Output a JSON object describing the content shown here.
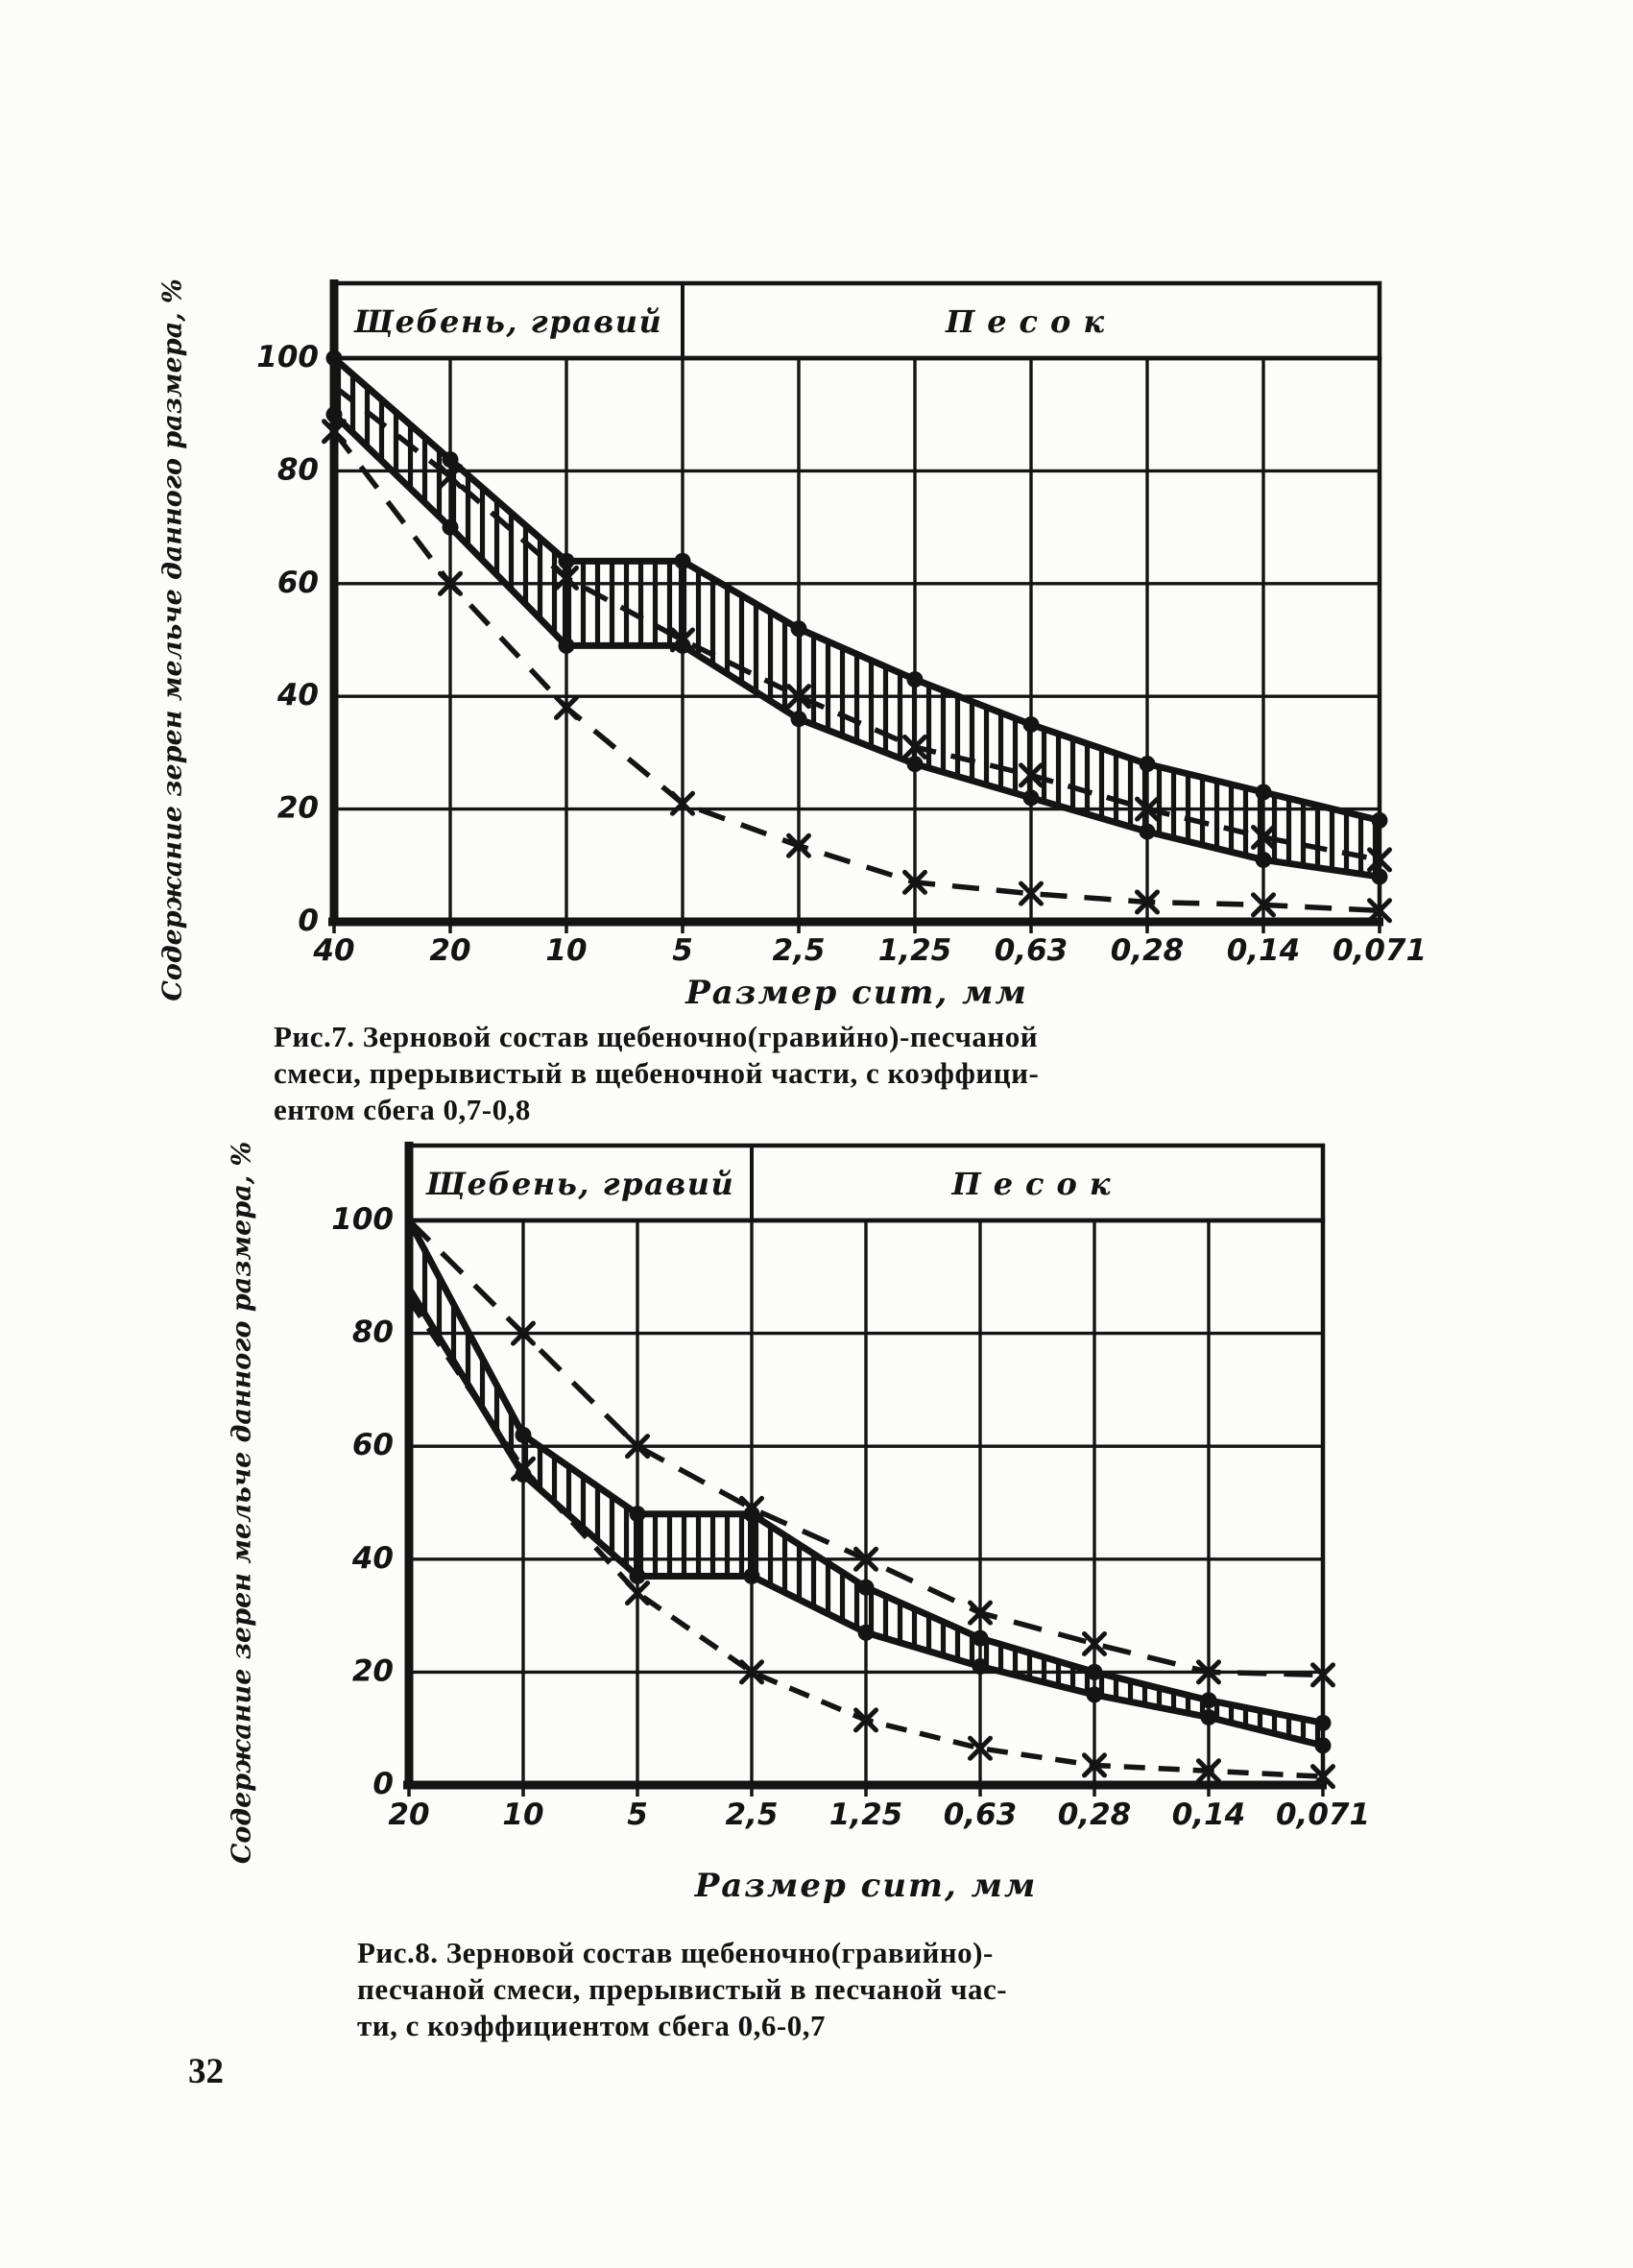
{
  "page": {
    "number": "32",
    "ink_color": "#141414",
    "paper_color": "#fcfcfa"
  },
  "figures": [
    {
      "caption_lines": [
        "Рис.7. Зерновой состав щебеночно(гравийно)-песчаной",
        "смеси, прерывистый в щебеночной части, с коэффици-",
        "ентом сбега 0,7-0,8"
      ]
    },
    {
      "caption_lines": [
        "Рис.8. Зерновой состав щебеночно(гравийно)-",
        "песчаной смеси, прерывистый в песчаной час-",
        "ти, с коэффициентом сбега 0,6-0,7"
      ]
    }
  ],
  "chart_data": [
    {
      "type": "line",
      "title": "Рис.7",
      "xlabel": "Размер сит, мм",
      "ylabel": "Содержание зерен мельче данного размера, %",
      "categories": [
        "40",
        "20",
        "10",
        "5",
        "2,5",
        "1,25",
        "0,63",
        "0,28",
        "0,14",
        "0,071"
      ],
      "y_ticks": [
        0,
        20,
        40,
        60,
        80,
        100
      ],
      "ylim": [
        0,
        100
      ],
      "grid": true,
      "legend": "none",
      "zone_header": {
        "left_label": "Щебень, гравий",
        "right_label": "Песок",
        "divider_category_index": 3
      },
      "band_series_indexes": [
        0,
        1
      ],
      "series": [
        {
          "name": "верхняя граница смеси (сплошная, точки)",
          "style": "solid",
          "marker": "dot",
          "skip_first_marker": false,
          "dash": null,
          "values": [
            100,
            82,
            64,
            64,
            52,
            43,
            35,
            28,
            23,
            18
          ]
        },
        {
          "name": "нижняя граница смеси (сплошная, точки)",
          "style": "solid",
          "marker": "dot",
          "skip_first_marker": false,
          "dash": null,
          "values": [
            90,
            70,
            49,
            49,
            36,
            28,
            22,
            16,
            11,
            8
          ]
        },
        {
          "name": "средняя кривая (штриховая, ×)",
          "style": "dashed",
          "marker": "x",
          "skip_first_marker": true,
          "dash": "26 16",
          "values": [
            95,
            79,
            61,
            50,
            40,
            31,
            26,
            20,
            15,
            11
          ]
        },
        {
          "name": "кривая сбега 0,7-0,8 (штриховая, ×)",
          "style": "dashed",
          "marker": "x",
          "skip_first_marker": false,
          "dash": "28 18",
          "values": [
            87,
            60,
            38,
            21,
            13.5,
            7,
            5,
            3.5,
            3,
            2
          ]
        }
      ]
    },
    {
      "type": "line",
      "title": "Рис.8",
      "xlabel": "Размер сит, мм",
      "ylabel": "Содержание зерен мельче данного размера, %",
      "categories": [
        "20",
        "10",
        "5",
        "2,5",
        "1,25",
        "0,63",
        "0,28",
        "0,14",
        "0,071"
      ],
      "y_ticks": [
        0,
        20,
        40,
        60,
        80,
        100
      ],
      "ylim": [
        0,
        100
      ],
      "grid": true,
      "legend": "none",
      "zone_header": {
        "left_label": "Щебень, гравий",
        "right_label": "Песок",
        "divider_category_index": 3
      },
      "band_series_indexes": [
        2,
        3
      ],
      "series": [
        {
          "name": "верхняя штриховая кривая (×)",
          "style": "dashed",
          "marker": "x",
          "skip_first_marker": true,
          "dash": "30 18",
          "values": [
            100,
            80,
            60,
            49,
            40,
            30.5,
            25,
            20,
            19.5
          ]
        },
        {
          "name": "нижняя штриховая кривая сбега 0,6-0,7 (×)",
          "style": "dashed",
          "marker": "x",
          "skip_first_marker": true,
          "dash": "22 14",
          "values": [
            86,
            56,
            34,
            20,
            11.5,
            6.5,
            3.5,
            2.5,
            1.5
          ]
        },
        {
          "name": "верхняя граница смеси (сплошная, точки)",
          "style": "solid",
          "marker": "dot",
          "skip_first_marker": true,
          "dash": null,
          "values": [
            100,
            62,
            48,
            48,
            35,
            26,
            20,
            15,
            11
          ]
        },
        {
          "name": "нижняя граница смеси (сплошная, точки)",
          "style": "solid",
          "marker": "dot",
          "skip_first_marker": true,
          "dash": null,
          "values": [
            88,
            55,
            37,
            37,
            27,
            21,
            16,
            12,
            7
          ]
        }
      ]
    }
  ]
}
